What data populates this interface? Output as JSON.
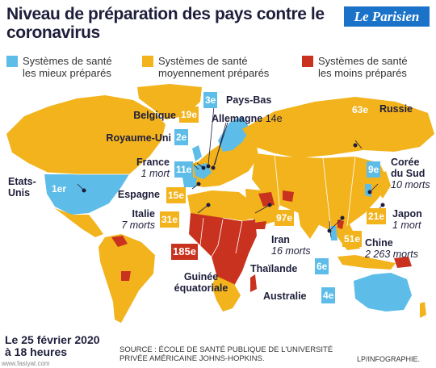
{
  "title": "Niveau de préparation des pays contre le coronavirus",
  "logo": "Le Parisien",
  "legend": [
    {
      "line1": "Systèmes de santé",
      "line2": "les mieux préparés",
      "color": "#5dbde8"
    },
    {
      "line1": "Systèmes de santé",
      "line2": "moyennement préparés",
      "color": "#f2b31c"
    },
    {
      "line1": "Systèmes de santé",
      "line2": "les moins préparés",
      "color": "#c8321e"
    }
  ],
  "countries": {
    "pays_bas": {
      "name": "Pays-Bas",
      "rank": "3e"
    },
    "belgique": {
      "name": "Belgique",
      "rank": "19e"
    },
    "allemagne": {
      "name": "Allemagne",
      "rank": "14e"
    },
    "royaume_uni": {
      "name": "Royaume-Uni",
      "rank": "2e"
    },
    "france": {
      "name": "France",
      "deaths": "1 mort",
      "rank": "11e"
    },
    "etats_unis": {
      "name_l1": "Etats-",
      "name_l2": "Unis",
      "rank": "1er"
    },
    "espagne": {
      "name": "Espagne",
      "rank": "15e"
    },
    "italie": {
      "name": "Italie",
      "deaths": "7 morts",
      "rank": "31e"
    },
    "russie": {
      "name": "Russie",
      "rank": "63e"
    },
    "coree": {
      "name_l1": "Corée",
      "name_l2": "du Sud",
      "deaths": "10 morts",
      "rank": "9e"
    },
    "japon": {
      "name": "Japon",
      "deaths": "1 mort",
      "rank": "21e"
    },
    "iran": {
      "name": "Iran",
      "deaths": "16 morts",
      "rank": "97e"
    },
    "chine": {
      "name": "Chine",
      "deaths": "2 263 morts",
      "rank": "51e"
    },
    "thailande": {
      "name": "Thaïlande",
      "rank": "6e"
    },
    "guinee": {
      "name_l1": "Guinée",
      "name_l2": "équatoriale",
      "rank": "185e"
    },
    "australie": {
      "name": "Australie",
      "rank": "4e"
    }
  },
  "date": {
    "line1": "Le 25 février 2020",
    "line2": "à 18 heures"
  },
  "source": {
    "line1": "SOURCE : ÉCOLE DE SANTÉ PUBLIQUE DE L'UNIVERSITÉ",
    "line2": "PRIVÉE AMÉRICAINE JOHNS-HOPKINS."
  },
  "credit": "LP/INFOGRAPHIE.",
  "watermark": "www.fasiyat.com"
}
